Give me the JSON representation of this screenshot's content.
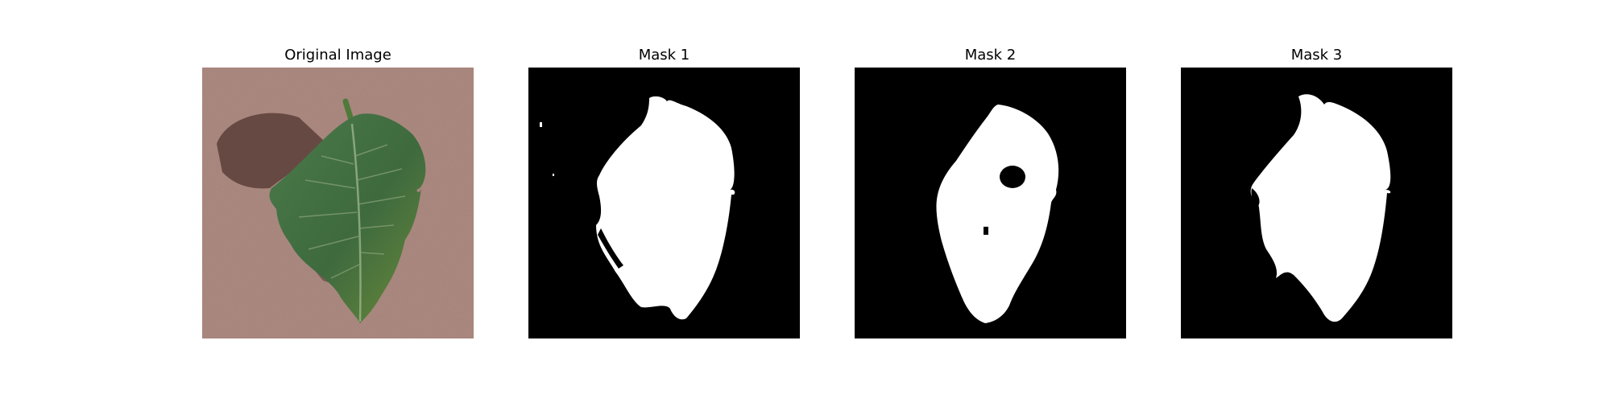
{
  "figure": {
    "panels": [
      {
        "title": "Original Image",
        "kind": "photo"
      },
      {
        "title": "Mask 1",
        "kind": "mask"
      },
      {
        "title": "Mask 2",
        "kind": "mask"
      },
      {
        "title": "Mask 3",
        "kind": "mask"
      }
    ]
  },
  "colors": {
    "background": "#ffffff",
    "mask_background": "#000000",
    "mask_foreground": "#ffffff",
    "photo_surface": "#a48178",
    "leaf_dark": "#3e6a3e",
    "leaf_light": "#4f8a3c",
    "shadow": "#5a3e37"
  }
}
